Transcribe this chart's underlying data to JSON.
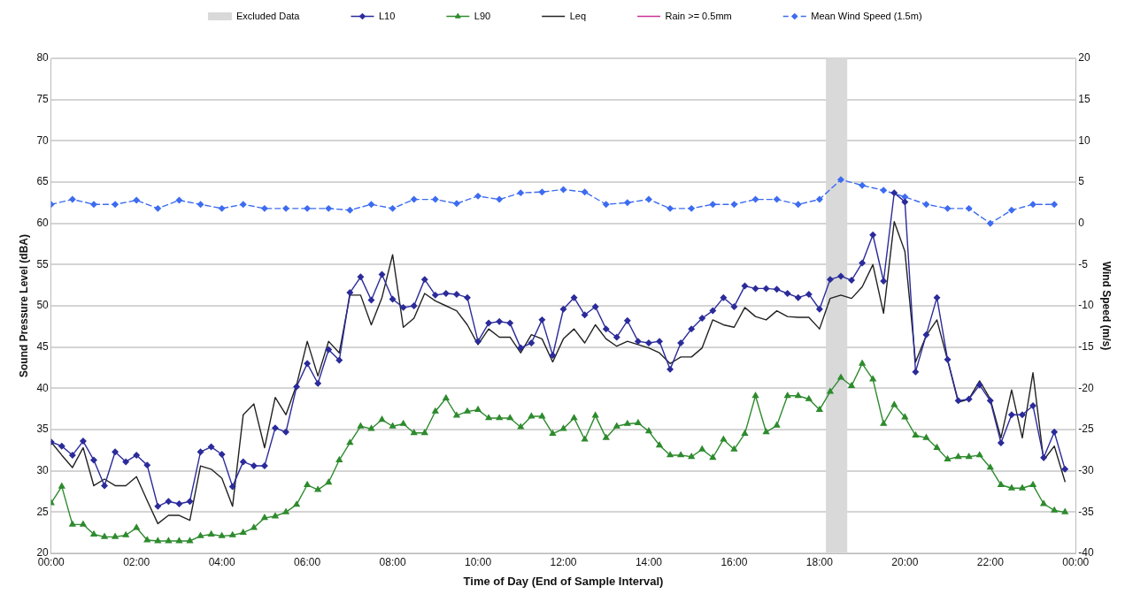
{
  "chart_data": {
    "type": "line",
    "xlabel": "Time of Day (End of Sample Interval)",
    "ylabel": "Sound Pressure Level (dBA)",
    "y2label": "Wind Speed (m/s)",
    "x": [
      0,
      0.25,
      0.5,
      0.75,
      1,
      1.25,
      1.5,
      1.75,
      2,
      2.25,
      2.5,
      2.75,
      3,
      3.25,
      3.5,
      3.75,
      4,
      4.25,
      4.5,
      4.75,
      5,
      5.25,
      5.5,
      5.75,
      6,
      6.25,
      6.5,
      6.75,
      7,
      7.25,
      7.5,
      7.75,
      8,
      8.25,
      8.5,
      8.75,
      9,
      9.25,
      9.5,
      9.75,
      10,
      10.25,
      10.5,
      10.75,
      11,
      11.25,
      11.5,
      11.75,
      12,
      12.25,
      12.5,
      12.75,
      13,
      13.25,
      13.5,
      13.75,
      14,
      14.25,
      14.5,
      14.75,
      15,
      15.25,
      15.5,
      15.75,
      16,
      16.25,
      16.5,
      16.75,
      17,
      17.25,
      17.5,
      17.75,
      18,
      18.25,
      18.5,
      18.75,
      19,
      19.25,
      19.5,
      19.75,
      20,
      20.25,
      20.5,
      20.75,
      21,
      21.25,
      21.5,
      21.75,
      22,
      22.25,
      22.5,
      22.75,
      23,
      23.25,
      23.5,
      23.75
    ],
    "series": [
      {
        "name": "L10",
        "color": "#2b2b9b",
        "marker": "diamond",
        "values": [
          33.5,
          33.0,
          31.9,
          33.6,
          31.3,
          28.2,
          32.3,
          31.1,
          31.9,
          30.7,
          25.7,
          26.3,
          26.0,
          26.3,
          32.3,
          32.9,
          32.0,
          28.1,
          31.1,
          30.6,
          30.6,
          35.2,
          34.7,
          40.2,
          43.0,
          40.6,
          44.7,
          43.4,
          51.6,
          53.5,
          50.7,
          53.8,
          50.8,
          49.8,
          50.0,
          53.2,
          51.3,
          51.5,
          51.4,
          51.0,
          45.7,
          47.9,
          48.1,
          47.9,
          44.9,
          45.5,
          48.3,
          44.0,
          49.6,
          51.0,
          48.9,
          49.9,
          47.2,
          46.2,
          48.2,
          45.7,
          45.5,
          45.7,
          42.3,
          45.5,
          47.2,
          48.5,
          49.4,
          51.0,
          49.9,
          52.4,
          52.1,
          52.1,
          52.0,
          51.5,
          51.0,
          51.4,
          49.6,
          53.2,
          53.6,
          53.1,
          55.2,
          58.6,
          53.0,
          63.7,
          62.6,
          42.0,
          46.5,
          51.0,
          43.5,
          38.5,
          38.7,
          40.4,
          38.5,
          33.4,
          36.8,
          36.8,
          37.9,
          31.6,
          34.7,
          30.2
        ]
      },
      {
        "name": "L90",
        "color": "#2e8b2e",
        "marker": "triangle",
        "values": [
          26.1,
          28.1,
          23.5,
          23.5,
          22.3,
          22.0,
          22.0,
          22.2,
          23.1,
          21.6,
          21.5,
          21.5,
          21.5,
          21.5,
          22.1,
          22.3,
          22.1,
          22.2,
          22.5,
          23.1,
          24.3,
          24.5,
          25.0,
          25.9,
          28.3,
          27.7,
          28.6,
          31.3,
          33.4,
          35.4,
          35.1,
          36.2,
          35.4,
          35.7,
          34.6,
          34.6,
          37.2,
          38.8,
          36.7,
          37.2,
          37.4,
          36.4,
          36.4,
          36.4,
          35.3,
          36.6,
          36.6,
          34.5,
          35.1,
          36.4,
          33.8,
          36.7,
          34.0,
          35.4,
          35.7,
          35.8,
          34.8,
          33.1,
          31.9,
          31.9,
          31.7,
          32.6,
          31.6,
          33.8,
          32.6,
          34.5,
          39.1,
          34.7,
          35.5,
          39.1,
          39.1,
          38.7,
          37.4,
          39.6,
          41.3,
          40.3,
          43.0,
          41.1,
          35.7,
          38.0,
          36.5,
          34.3,
          34.0,
          32.8,
          31.4,
          31.7,
          31.7,
          31.9,
          30.4,
          28.3,
          27.9,
          27.9,
          28.3,
          26.0,
          25.2,
          25.0
        ]
      },
      {
        "name": "Leq",
        "color": "#222222",
        "marker": "none",
        "values": [
          33.5,
          31.9,
          30.4,
          32.8,
          28.2,
          29.0,
          28.2,
          28.2,
          29.3,
          26.4,
          23.6,
          24.6,
          24.6,
          24.0,
          30.6,
          30.2,
          29.1,
          25.7,
          36.8,
          38.1,
          32.8,
          38.9,
          36.8,
          40.4,
          45.7,
          41.5,
          45.7,
          44.3,
          51.3,
          51.3,
          47.7,
          51.0,
          56.2,
          47.4,
          48.5,
          51.5,
          50.6,
          50.0,
          49.4,
          47.7,
          45.3,
          47.2,
          46.2,
          46.2,
          44.3,
          46.5,
          46.0,
          43.2,
          46.0,
          47.2,
          45.5,
          47.7,
          46.0,
          45.1,
          45.7,
          45.3,
          44.9,
          44.3,
          43.0,
          43.8,
          43.8,
          44.9,
          48.3,
          47.7,
          47.4,
          49.8,
          48.7,
          48.3,
          49.4,
          48.7,
          48.6,
          48.6,
          47.2,
          50.9,
          51.3,
          50.9,
          52.3,
          55.0,
          49.1,
          60.2,
          56.6,
          43.2,
          46.4,
          48.3,
          43.4,
          38.3,
          38.7,
          40.9,
          38.7,
          34.0,
          39.8,
          34.0,
          41.9,
          31.3,
          33.0,
          28.7
        ]
      },
      {
        "name": "Rain >= 0.5mm",
        "color": "#cc3399",
        "marker": "none",
        "values": [
          null,
          null,
          null,
          null,
          null,
          null,
          null,
          null,
          null,
          null,
          null,
          null,
          null,
          null,
          null,
          null,
          null,
          null,
          null,
          null,
          null,
          null,
          null,
          null,
          null,
          null,
          null,
          null,
          null,
          null,
          null,
          null,
          null,
          null,
          null,
          null,
          null,
          null,
          null,
          null,
          null,
          null,
          null,
          null,
          null,
          null,
          null,
          null,
          null,
          null,
          null,
          null,
          null,
          null,
          null,
          null,
          null,
          null,
          null,
          null,
          null,
          null,
          null,
          null,
          null,
          null,
          null,
          null,
          null,
          null,
          null,
          null,
          null,
          null,
          null,
          null,
          null,
          null,
          null,
          null,
          null,
          null,
          null,
          null,
          null,
          null,
          null,
          null,
          null,
          null,
          null,
          null,
          null,
          null,
          null,
          null
        ]
      },
      {
        "name": "Mean Wind Speed (1.5m)",
        "color": "#3d6cf0",
        "marker": "diamond",
        "line_style": "dashed",
        "axis": "y2",
        "x": [
          0,
          0.5,
          1,
          1.5,
          2,
          2.5,
          3,
          3.5,
          4,
          4.5,
          5,
          5.5,
          6,
          6.5,
          7,
          7.5,
          8,
          8.5,
          9,
          9.5,
          10,
          10.5,
          11,
          11.5,
          12,
          12.5,
          13,
          13.5,
          14,
          14.5,
          15,
          15.5,
          16,
          16.5,
          17,
          17.5,
          18,
          18.5,
          19,
          19.5,
          20,
          20.5,
          21,
          21.5,
          22,
          22.5,
          23,
          23.5
        ],
        "values": [
          2.3,
          2.9,
          2.3,
          2.3,
          2.8,
          1.8,
          2.8,
          2.3,
          1.8,
          2.3,
          1.8,
          1.8,
          1.8,
          1.8,
          1.6,
          2.3,
          1.8,
          2.9,
          2.9,
          2.4,
          3.3,
          2.9,
          3.7,
          3.8,
          4.1,
          3.8,
          2.3,
          2.5,
          2.9,
          1.8,
          1.8,
          2.3,
          2.3,
          2.9,
          2.9,
          2.3,
          2.9,
          5.3,
          4.6,
          4.0,
          3.2,
          2.3,
          1.8,
          1.8,
          0.0,
          1.6,
          2.3,
          2.3
        ]
      }
    ],
    "bands": [
      {
        "axis": "x",
        "from": 18.15,
        "to": 18.65,
        "label": "Excluded Data",
        "color": "#d9d9d9"
      }
    ],
    "xlim": [
      0,
      24
    ],
    "xticks": [
      {
        "value": 0,
        "label": "00:00"
      },
      {
        "value": 2,
        "label": "02:00"
      },
      {
        "value": 4,
        "label": "04:00"
      },
      {
        "value": 6,
        "label": "06:00"
      },
      {
        "value": 8,
        "label": "08:00"
      },
      {
        "value": 10,
        "label": "10:00"
      },
      {
        "value": 12,
        "label": "12:00"
      },
      {
        "value": 14,
        "label": "14:00"
      },
      {
        "value": 16,
        "label": "16:00"
      },
      {
        "value": 18,
        "label": "18:00"
      },
      {
        "value": 20,
        "label": "20:00"
      },
      {
        "value": 22,
        "label": "22:00"
      },
      {
        "value": 24,
        "label": "00:00"
      }
    ],
    "ylim": [
      20,
      80
    ],
    "yticks": [
      20,
      25,
      30,
      35,
      40,
      45,
      50,
      55,
      60,
      65,
      70,
      75,
      80
    ],
    "y2lim": [
      -40,
      20
    ],
    "y2ticks": [
      -40,
      -35,
      -30,
      -25,
      -20,
      -15,
      -10,
      -5,
      0,
      5,
      10,
      15,
      20
    ],
    "grid": "y",
    "legend": "top"
  }
}
